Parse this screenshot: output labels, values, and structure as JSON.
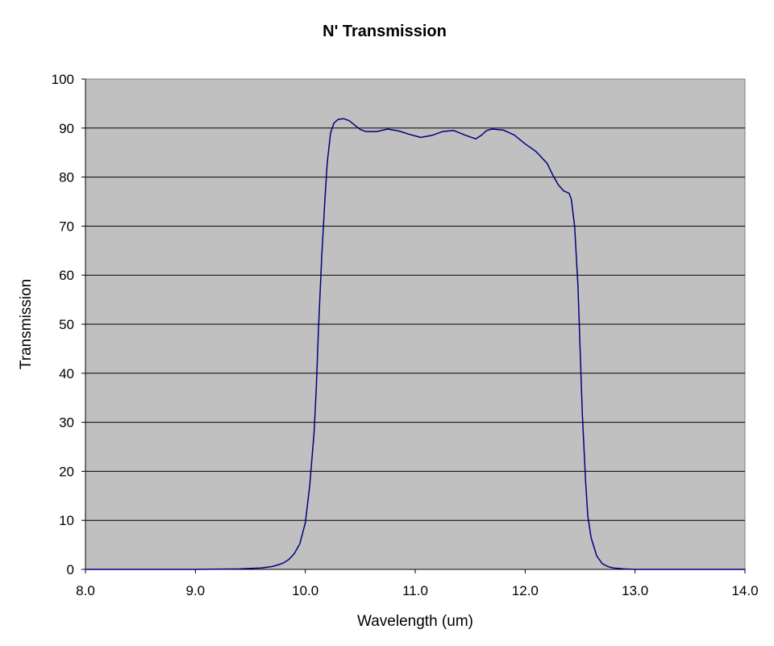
{
  "chart_data": {
    "type": "line",
    "title": "N' Transmission",
    "xlabel": "Wavelength (um)",
    "ylabel": "Transmission",
    "xlim": [
      8.0,
      14.0
    ],
    "ylim": [
      0,
      100
    ],
    "x_ticks": [
      "8.0",
      "9.0",
      "10.0",
      "11.0",
      "12.0",
      "13.0",
      "14.0"
    ],
    "y_ticks": [
      "0",
      "10",
      "20",
      "30",
      "40",
      "50",
      "60",
      "70",
      "80",
      "90",
      "100"
    ],
    "grid": "horizontal",
    "legend": "none",
    "colors": {
      "plot_background": "#c0c0c0",
      "line": "#000080",
      "grid": "#000000"
    },
    "series": [
      {
        "x": [
          8.0,
          8.5,
          9.0,
          9.4,
          9.6,
          9.7,
          9.75,
          9.8,
          9.85,
          9.9,
          9.95,
          10.0,
          10.04,
          10.08,
          10.1,
          10.12,
          10.15,
          10.18,
          10.2,
          10.23,
          10.26,
          10.3,
          10.35,
          10.4,
          10.45,
          10.5,
          10.55,
          10.65,
          10.75,
          10.85,
          10.95,
          11.05,
          11.15,
          11.25,
          11.35,
          11.45,
          11.55,
          11.6,
          11.65,
          11.7,
          11.8,
          11.9,
          12.0,
          12.1,
          12.2,
          12.25,
          12.3,
          12.35,
          12.4,
          12.42,
          12.45,
          12.48,
          12.5,
          12.52,
          12.55,
          12.57,
          12.6,
          12.65,
          12.7,
          12.75,
          12.8,
          12.9,
          13.0,
          13.5,
          14.0
        ],
        "y": [
          0,
          0,
          0,
          0.1,
          0.3,
          0.6,
          0.9,
          1.3,
          2.0,
          3.2,
          5.2,
          9.5,
          17,
          28,
          37,
          49,
          64,
          76,
          83,
          89,
          91,
          91.8,
          91.9,
          91.5,
          90.6,
          89.7,
          89.3,
          89.3,
          89.8,
          89.4,
          88.7,
          88.1,
          88.5,
          89.3,
          89.5,
          88.6,
          87.8,
          88.5,
          89.5,
          89.8,
          89.6,
          88.6,
          86.8,
          85.2,
          82.8,
          80.5,
          78.5,
          77.2,
          76.7,
          75.5,
          70,
          58,
          45,
          32,
          18,
          11,
          6.5,
          2.8,
          1.2,
          0.6,
          0.3,
          0.1,
          0,
          0,
          0
        ]
      }
    ]
  }
}
